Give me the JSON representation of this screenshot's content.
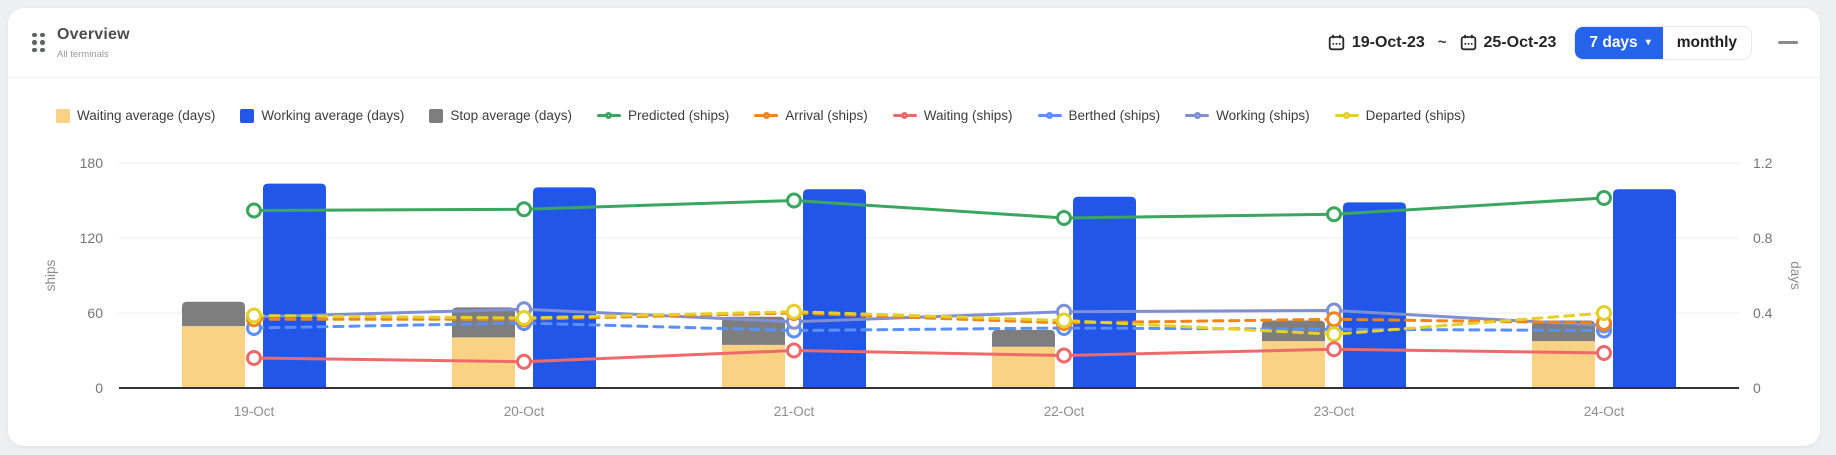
{
  "header": {
    "title": "Overview",
    "subtitle": "All terminals",
    "date_from": "19-Oct-23",
    "date_separator": "~",
    "date_to": "25-Oct-23",
    "range_button_label": "7 days",
    "range_button_caret": "▾",
    "monthly_button_label": "monthly",
    "accent_color": "#2563eb"
  },
  "legend": [
    {
      "label": "Waiting average (days)",
      "type": "bar",
      "color": "#fad283"
    },
    {
      "label": "Working average (days)",
      "type": "bar",
      "color": "#2256e8"
    },
    {
      "label": "Stop average (days)",
      "type": "bar",
      "color": "#7e7e7e"
    },
    {
      "label": "Predicted (ships)",
      "type": "line",
      "color": "#3aa65f"
    },
    {
      "label": "Arrival (ships)",
      "type": "line",
      "color": "#f0861a"
    },
    {
      "label": "Waiting (ships)",
      "type": "line",
      "color": "#ee6a6a"
    },
    {
      "label": "Berthed (ships)",
      "type": "line",
      "color": "#5b8ff9"
    },
    {
      "label": "Working (ships)",
      "type": "line",
      "color": "#7f8fd4"
    },
    {
      "label": "Departed (ships)",
      "type": "line",
      "color": "#e3d029"
    }
  ],
  "chart_data": {
    "type": "combo-bar-line",
    "categories": [
      "19-Oct",
      "20-Oct",
      "21-Oct",
      "22-Oct",
      "23-Oct",
      "24-Oct"
    ],
    "left_axis": {
      "label": "ships",
      "ticks": [
        0,
        60,
        120,
        180
      ],
      "max": 180
    },
    "right_axis": {
      "label": "days",
      "ticks": [
        0,
        0.4,
        0.8,
        1.2
      ],
      "max": 1.2
    },
    "grid": "horizontal-only",
    "legend_position": "top-left",
    "series": [
      {
        "name": "Waiting average (days)",
        "type": "bar",
        "axis": "right",
        "stack": "avg",
        "slot": 0,
        "color": "#fad283",
        "values": [
          0.33,
          0.27,
          0.23,
          0.22,
          0.25,
          0.25
        ]
      },
      {
        "name": "Stop average (days)",
        "type": "bar",
        "axis": "right",
        "stack": "avg",
        "slot": 0,
        "color": "#7e7e7e",
        "values": [
          0.13,
          0.16,
          0.15,
          0.09,
          0.11,
          0.11
        ]
      },
      {
        "name": "Working average (days)",
        "type": "bar",
        "axis": "right",
        "stack": "working",
        "slot": 1,
        "color": "#2256e8",
        "values": [
          1.09,
          1.07,
          1.06,
          1.02,
          0.99,
          1.06
        ]
      },
      {
        "name": "Berthed (ships)",
        "type": "line",
        "axis": "left",
        "dashed": true,
        "color": "#5b8ff9",
        "values": [
          48,
          52,
          46,
          48,
          47,
          46
        ]
      },
      {
        "name": "Working (ships)",
        "type": "line",
        "axis": "left",
        "dashed": false,
        "color": "#7f8fd4",
        "values": [
          57,
          63,
          53,
          61,
          62,
          50
        ]
      },
      {
        "name": "Arrival (ships)",
        "type": "line",
        "axis": "left",
        "dashed": true,
        "color": "#f0861a",
        "values": [
          55,
          55,
          60,
          52,
          55,
          52
        ]
      },
      {
        "name": "Departed (ships)",
        "type": "line",
        "axis": "left",
        "dashed": true,
        "color": "#e3d029",
        "values": [
          58,
          56,
          61,
          54,
          43,
          60
        ]
      },
      {
        "name": "Waiting (ships)",
        "type": "line",
        "axis": "left",
        "dashed": false,
        "color": "#ee6a6a",
        "values": [
          24,
          21,
          30,
          26,
          31,
          28
        ]
      },
      {
        "name": "Predicted (ships)",
        "type": "line",
        "axis": "left",
        "dashed": false,
        "color": "#3aa65f",
        "values": [
          142,
          143,
          150,
          136,
          139,
          152
        ]
      }
    ]
  }
}
